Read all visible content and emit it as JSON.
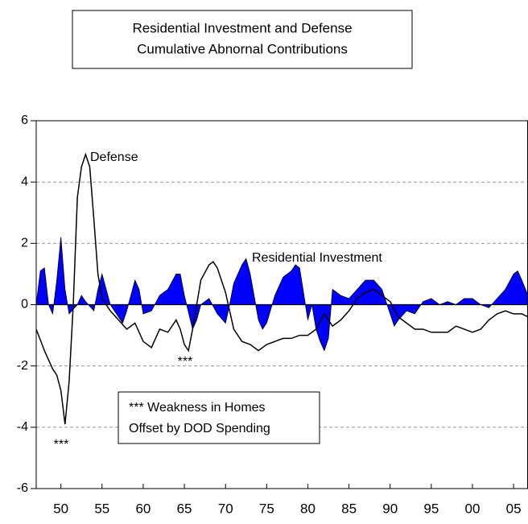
{
  "chart_data": {
    "type": "line",
    "title": [
      "Residential Investment and Defense",
      "Cumulative Abnornal Contributions"
    ],
    "xlim": [
      1947,
      2006.75
    ],
    "ylim": [
      -6,
      6
    ],
    "yticks": [
      -6,
      -4,
      -2,
      0,
      2,
      4,
      6
    ],
    "xticks": [
      {
        "value": 1950,
        "label": "50"
      },
      {
        "value": 1955,
        "label": "55"
      },
      {
        "value": 1960,
        "label": "60"
      },
      {
        "value": 1965,
        "label": "65"
      },
      {
        "value": 1970,
        "label": "70"
      },
      {
        "value": 1975,
        "label": "75"
      },
      {
        "value": 1980,
        "label": "80"
      },
      {
        "value": 1985,
        "label": "85"
      },
      {
        "value": 1990,
        "label": "90"
      },
      {
        "value": 1995,
        "label": "95"
      },
      {
        "value": 2000,
        "label": "00"
      },
      {
        "value": 2005,
        "label": "05"
      }
    ],
    "grid": true,
    "series": [
      {
        "name": "Residential Investment",
        "type": "area",
        "color": "#0000ff",
        "x": [
          1947,
          1947.5,
          1948,
          1948.5,
          1949,
          1949.5,
          1950,
          1950.5,
          1951,
          1952,
          1952.5,
          1953,
          1954,
          1954.5,
          1955,
          1955.5,
          1956,
          1957,
          1957.5,
          1958,
          1959,
          1959.5,
          1960,
          1961,
          1962,
          1963,
          1964,
          1964.5,
          1965,
          1966,
          1966.5,
          1967,
          1968,
          1969,
          1970,
          1970.5,
          1971,
          1972,
          1972.5,
          1973,
          1974,
          1974.5,
          1975,
          1976,
          1977,
          1978,
          1978.5,
          1979,
          1980,
          1980.5,
          1981,
          1981.5,
          1982,
          1982.5,
          1983,
          1984,
          1985,
          1986,
          1987,
          1988,
          1989,
          1990,
          1990.5,
          1991,
          1992,
          1993,
          1994,
          1995,
          1996,
          1997,
          1998,
          1999,
          2000,
          2001,
          2002,
          2003,
          2004,
          2005,
          2005.5,
          2006,
          2006.75
        ],
        "values": [
          0,
          1.1,
          1.2,
          0,
          -0.3,
          0.8,
          2.2,
          0.5,
          -0.3,
          0,
          0.3,
          0.1,
          -0.2,
          0.5,
          1.0,
          0.5,
          0,
          -0.4,
          -0.6,
          -0.2,
          0.8,
          0.5,
          -0.3,
          -0.2,
          0.3,
          0.5,
          1.0,
          1.0,
          0.3,
          -0.8,
          -0.5,
          0,
          0.2,
          -0.3,
          -0.6,
          0,
          0.7,
          1.3,
          1.5,
          1.0,
          -0.5,
          -0.8,
          -0.6,
          0.3,
          0.9,
          1.1,
          1.3,
          1.2,
          -0.5,
          0,
          -0.8,
          -1.2,
          -1.5,
          -1.1,
          0.5,
          0.3,
          0.2,
          0.5,
          0.8,
          0.8,
          0.5,
          -0.3,
          -0.7,
          -0.5,
          -0.2,
          -0.3,
          0.1,
          0.2,
          0,
          0.1,
          0,
          0.2,
          0.2,
          0,
          -0.1,
          0.2,
          0.5,
          1.0,
          1.1,
          0.8,
          0.3
        ]
      },
      {
        "name": "Defense",
        "type": "line",
        "color": "#000000",
        "x": [
          1947,
          1948,
          1949,
          1949.5,
          1950,
          1950.5,
          1951,
          1951.5,
          1952,
          1952.5,
          1953,
          1953.5,
          1954,
          1954.5,
          1955,
          1956,
          1957,
          1958,
          1959,
          1960,
          1961,
          1962,
          1963,
          1964,
          1964.5,
          1965,
          1965.5,
          1966,
          1967,
          1968,
          1968.5,
          1969,
          1970,
          1971,
          1972,
          1973,
          1974,
          1975,
          1976,
          1977,
          1978,
          1979,
          1980,
          1981,
          1982,
          1983,
          1984,
          1985,
          1986,
          1987,
          1988,
          1989,
          1990,
          1991,
          1992,
          1993,
          1994,
          1995,
          1996,
          1997,
          1998,
          1999,
          2000,
          2001,
          2002,
          2003,
          2004,
          2005,
          2006,
          2006.75
        ],
        "values": [
          -0.8,
          -1.5,
          -2.1,
          -2.3,
          -2.8,
          -3.9,
          -2.5,
          0,
          3.5,
          4.5,
          4.9,
          4.5,
          2.8,
          1.0,
          0.2,
          -0.2,
          -0.5,
          -0.8,
          -0.6,
          -1.2,
          -1.4,
          -0.8,
          -0.9,
          -0.5,
          -0.8,
          -1.3,
          -1.5,
          -0.8,
          0.8,
          1.3,
          1.4,
          1.2,
          0.4,
          -0.8,
          -1.2,
          -1.3,
          -1.5,
          -1.3,
          -1.2,
          -1.1,
          -1.1,
          -1.0,
          -1.0,
          -0.8,
          -0.3,
          -0.7,
          -0.5,
          -0.2,
          0.2,
          0.4,
          0.5,
          0.3,
          0.1,
          -0.4,
          -0.6,
          -0.8,
          -0.8,
          -0.9,
          -0.9,
          -0.9,
          -0.7,
          -0.8,
          -0.9,
          -0.8,
          -0.5,
          -0.3,
          -0.2,
          -0.3,
          -0.3,
          -0.4
        ]
      }
    ],
    "annotations": [
      "Defense",
      "Residential Investment",
      "***",
      "***",
      "*** Weakness in Homes",
      "Offset by DOD Spending"
    ]
  }
}
